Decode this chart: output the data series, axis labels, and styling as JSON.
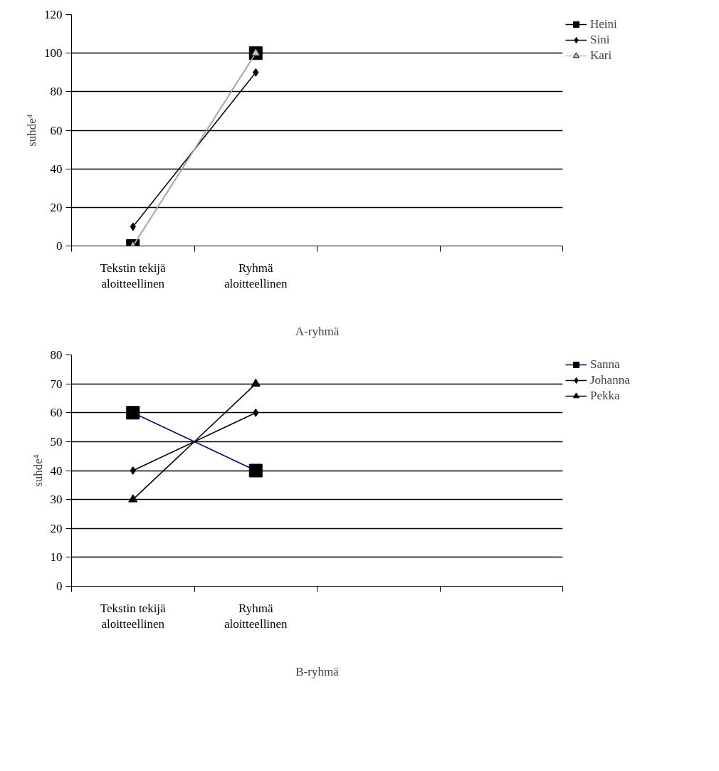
{
  "chart_data": [
    {
      "type": "line",
      "xlabel": "A-ryhmä",
      "ylabel": "suhde⁴",
      "categories": [
        "Tekstin tekijä aloitteellinen",
        "Ryhmä aloitteellinen",
        null,
        null
      ],
      "ylim": [
        0,
        120
      ],
      "yticks": [
        0,
        20,
        40,
        60,
        80,
        100,
        120
      ],
      "grid": "y",
      "legend": "right",
      "series": [
        {
          "name": "Heini",
          "color": "#000000",
          "marker": "square",
          "values": [
            0,
            100,
            null,
            null
          ]
        },
        {
          "name": "Sini",
          "color": "#000000",
          "marker": "diamond",
          "values": [
            10,
            90,
            null,
            null
          ]
        },
        {
          "name": "Kari",
          "color": "#c0c0c0",
          "marker": "triangle",
          "values": [
            0,
            100,
            null,
            null
          ]
        }
      ]
    },
    {
      "type": "line",
      "xlabel": "B-ryhmä",
      "ylabel": "suhde⁴",
      "categories": [
        "Tekstin tekijä aloitteellinen",
        "Ryhmä aloitteellinen",
        null,
        null
      ],
      "ylim": [
        0,
        80
      ],
      "yticks": [
        0,
        10,
        20,
        30,
        40,
        50,
        60,
        70,
        80
      ],
      "grid": "y",
      "legend": "right",
      "series": [
        {
          "name": "Sanna",
          "color": "#000080",
          "marker": "square",
          "values": [
            60,
            40,
            null,
            null
          ]
        },
        {
          "name": "Johanna",
          "color": "#000000",
          "marker": "diamond",
          "values": [
            40,
            60,
            null,
            null
          ]
        },
        {
          "name": "Pekka",
          "color": "#000000",
          "marker": "triangle",
          "values": [
            30,
            70,
            null,
            null
          ]
        }
      ]
    }
  ]
}
